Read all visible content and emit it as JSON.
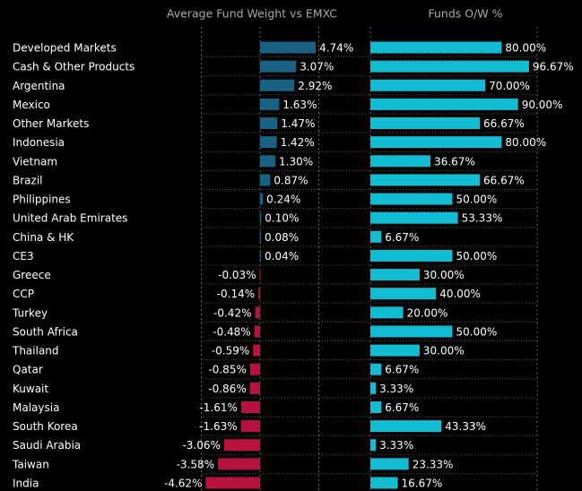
{
  "chart_data": {
    "type": "bar",
    "orientation": "horizontal",
    "categories": [
      "Developed Markets",
      "Cash & Other Products",
      "Argentina",
      "Mexico",
      "Other Markets",
      "Indonesia",
      "Vietnam",
      "Brazil",
      "Philippines",
      "United Arab Emirates",
      "China & HK",
      "CE3",
      "Greece",
      "CCP",
      "Turkey",
      "South Africa",
      "Thailand",
      "Qatar",
      "Kuwait",
      "Malaysia",
      "South Korea",
      "Saudi Arabia",
      "Taiwan",
      "India"
    ],
    "series": [
      {
        "name": "Average Fund Weight vs EMXC",
        "color": "#1a6284",
        "negative_color": "#b8123e",
        "xlim": [
          -5,
          5
        ],
        "values": [
          4.74,
          3.07,
          2.92,
          1.63,
          1.47,
          1.42,
          1.3,
          0.87,
          0.24,
          0.1,
          0.08,
          0.04,
          -0.03,
          -0.14,
          -0.42,
          -0.48,
          -0.59,
          -0.85,
          -0.86,
          -1.61,
          -1.63,
          -3.06,
          -3.58,
          -4.62
        ],
        "value_labels": [
          "4.74%",
          "3.07%",
          "2.92%",
          "1.63%",
          "1.47%",
          "1.42%",
          "1.30%",
          "0.87%",
          "0.24%",
          "0.10%",
          "0.08%",
          "0.04%",
          "-0.03%",
          "-0.14%",
          "-0.42%",
          "-0.48%",
          "-0.59%",
          "-0.85%",
          "-0.86%",
          "-1.61%",
          "-1.63%",
          "-3.06%",
          "-3.58%",
          "-4.62%"
        ]
      },
      {
        "name": "Funds O/W %",
        "color": "#12bdd3",
        "xlim": [
          0,
          100
        ],
        "values": [
          80.0,
          96.67,
          70.0,
          90.0,
          66.67,
          80.0,
          36.67,
          66.67,
          50.0,
          53.33,
          6.67,
          50.0,
          30.0,
          40.0,
          20.0,
          50.0,
          30.0,
          6.67,
          3.33,
          6.67,
          43.33,
          3.33,
          23.33,
          16.67
        ],
        "value_labels": [
          "80.00%",
          "96.67%",
          "70.00%",
          "90.00%",
          "66.67%",
          "80.00%",
          "36.67%",
          "66.67%",
          "50.00%",
          "53.33%",
          "6.67%",
          "50.00%",
          "30.00%",
          "40.00%",
          "20.00%",
          "50.00%",
          "30.00%",
          "6.67%",
          "3.33%",
          "6.67%",
          "43.33%",
          "3.33%",
          "23.33%",
          "16.67%"
        ]
      }
    ]
  }
}
